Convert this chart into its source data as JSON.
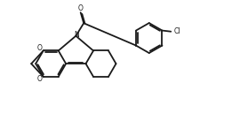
{
  "bg_color": "#ffffff",
  "line_color": "#1a1a1a",
  "lw": 1.3,
  "fig_width": 2.61,
  "fig_height": 1.28,
  "dpi": 100,
  "xlim": [
    0,
    10.5
  ],
  "ylim": [
    0,
    5.5
  ]
}
